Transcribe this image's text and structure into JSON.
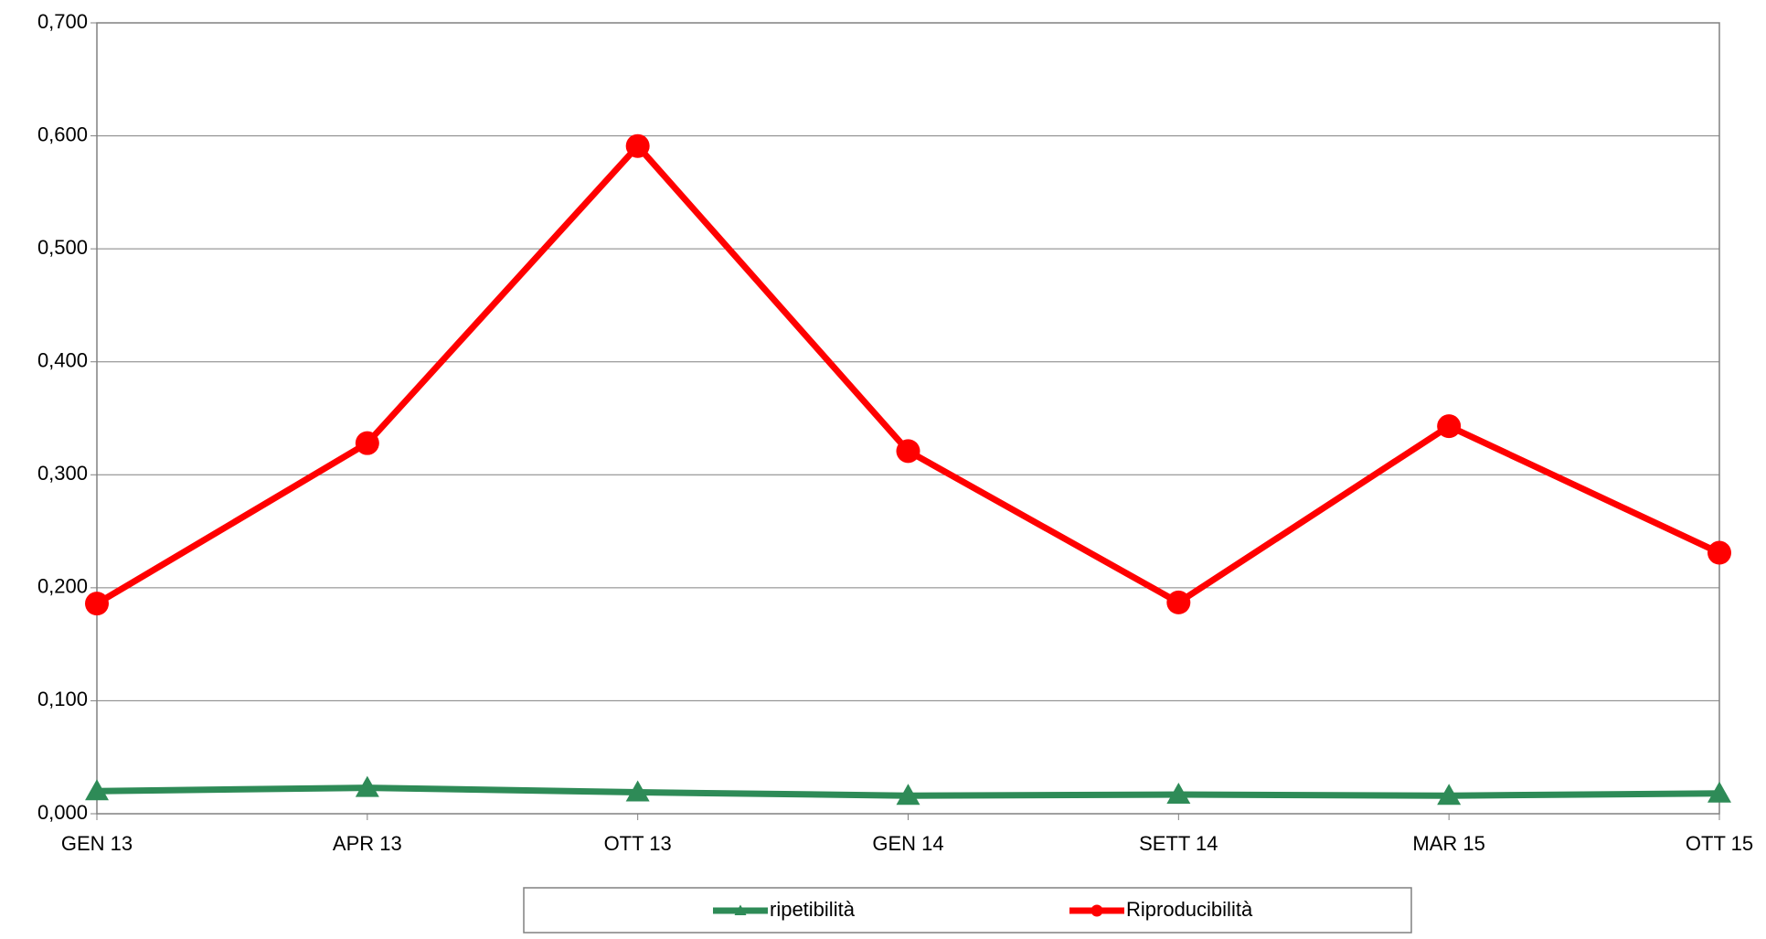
{
  "chart_data": {
    "type": "line",
    "categories": [
      "GEN 13",
      "APR 13",
      "OTT 13",
      "GEN 14",
      "SETT 14",
      "MAR 15",
      "OTT 15"
    ],
    "series": [
      {
        "name": "ripetibilità",
        "color": "#2e8b57",
        "marker": "triangle",
        "values": [
          0.02,
          0.023,
          0.019,
          0.016,
          0.017,
          0.016,
          0.018
        ]
      },
      {
        "name": "Riproducibilità",
        "color": "#ff0000",
        "marker": "circle",
        "values": [
          0.186,
          0.328,
          0.591,
          0.321,
          0.187,
          0.343,
          0.231
        ]
      }
    ],
    "ylim": [
      0,
      0.7
    ],
    "yticks": [
      {
        "value": 0,
        "label": "0,000"
      },
      {
        "value": 0.1,
        "label": "0,100"
      },
      {
        "value": 0.2,
        "label": "0,200"
      },
      {
        "value": 0.3,
        "label": "0,300"
      },
      {
        "value": 0.4,
        "label": "0,400"
      },
      {
        "value": 0.5,
        "label": "0,500"
      },
      {
        "value": 0.6,
        "label": "0,600"
      },
      {
        "value": 0.7,
        "label": "0,700"
      }
    ],
    "grid": true,
    "legend": "bottom"
  }
}
